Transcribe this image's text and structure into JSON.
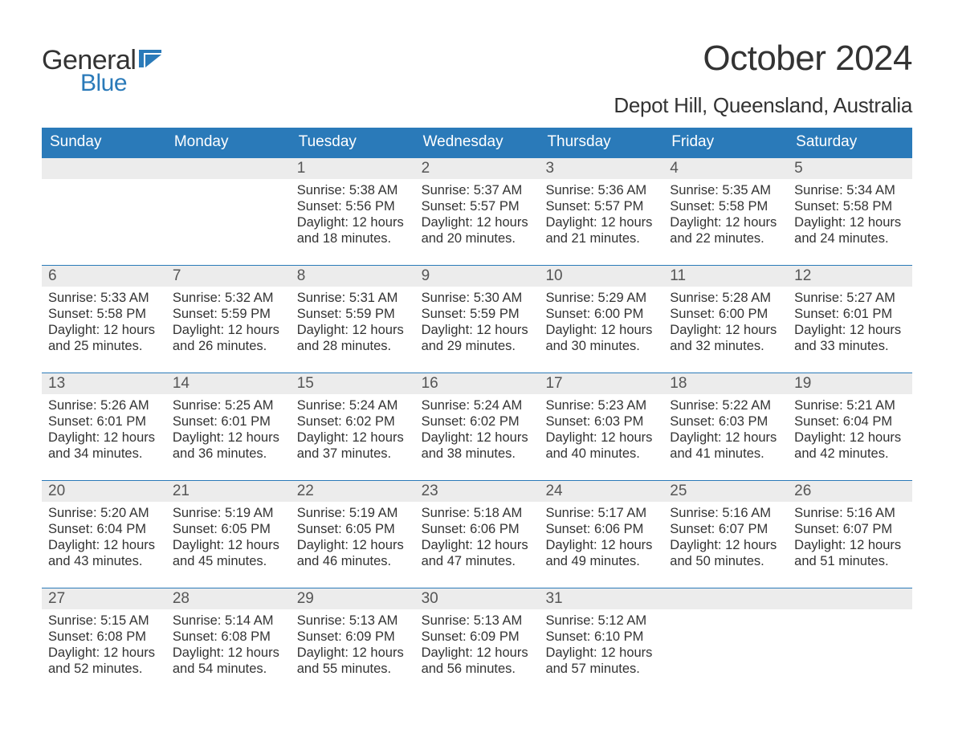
{
  "logo": {
    "word1": "General",
    "word2": "Blue"
  },
  "title": "October 2024",
  "location": "Depot Hill, Queensland, Australia",
  "colors": {
    "header_blue": "#2a7ab9",
    "row_gray": "#ececec",
    "text": "#333333",
    "logo_blue": "#2a7ab9",
    "white": "#ffffff"
  },
  "weekdays": [
    "Sunday",
    "Monday",
    "Tuesday",
    "Wednesday",
    "Thursday",
    "Friday",
    "Saturday"
  ],
  "weeks": [
    [
      {
        "blank": true
      },
      {
        "blank": true
      },
      {
        "day": "1",
        "sunrise": "Sunrise: 5:38 AM",
        "sunset": "Sunset: 5:56 PM",
        "daylight1": "Daylight: 12 hours",
        "daylight2": "and 18 minutes."
      },
      {
        "day": "2",
        "sunrise": "Sunrise: 5:37 AM",
        "sunset": "Sunset: 5:57 PM",
        "daylight1": "Daylight: 12 hours",
        "daylight2": "and 20 minutes."
      },
      {
        "day": "3",
        "sunrise": "Sunrise: 5:36 AM",
        "sunset": "Sunset: 5:57 PM",
        "daylight1": "Daylight: 12 hours",
        "daylight2": "and 21 minutes."
      },
      {
        "day": "4",
        "sunrise": "Sunrise: 5:35 AM",
        "sunset": "Sunset: 5:58 PM",
        "daylight1": "Daylight: 12 hours",
        "daylight2": "and 22 minutes."
      },
      {
        "day": "5",
        "sunrise": "Sunrise: 5:34 AM",
        "sunset": "Sunset: 5:58 PM",
        "daylight1": "Daylight: 12 hours",
        "daylight2": "and 24 minutes."
      }
    ],
    [
      {
        "day": "6",
        "sunrise": "Sunrise: 5:33 AM",
        "sunset": "Sunset: 5:58 PM",
        "daylight1": "Daylight: 12 hours",
        "daylight2": "and 25 minutes."
      },
      {
        "day": "7",
        "sunrise": "Sunrise: 5:32 AM",
        "sunset": "Sunset: 5:59 PM",
        "daylight1": "Daylight: 12 hours",
        "daylight2": "and 26 minutes."
      },
      {
        "day": "8",
        "sunrise": "Sunrise: 5:31 AM",
        "sunset": "Sunset: 5:59 PM",
        "daylight1": "Daylight: 12 hours",
        "daylight2": "and 28 minutes."
      },
      {
        "day": "9",
        "sunrise": "Sunrise: 5:30 AM",
        "sunset": "Sunset: 5:59 PM",
        "daylight1": "Daylight: 12 hours",
        "daylight2": "and 29 minutes."
      },
      {
        "day": "10",
        "sunrise": "Sunrise: 5:29 AM",
        "sunset": "Sunset: 6:00 PM",
        "daylight1": "Daylight: 12 hours",
        "daylight2": "and 30 minutes."
      },
      {
        "day": "11",
        "sunrise": "Sunrise: 5:28 AM",
        "sunset": "Sunset: 6:00 PM",
        "daylight1": "Daylight: 12 hours",
        "daylight2": "and 32 minutes."
      },
      {
        "day": "12",
        "sunrise": "Sunrise: 5:27 AM",
        "sunset": "Sunset: 6:01 PM",
        "daylight1": "Daylight: 12 hours",
        "daylight2": "and 33 minutes."
      }
    ],
    [
      {
        "day": "13",
        "sunrise": "Sunrise: 5:26 AM",
        "sunset": "Sunset: 6:01 PM",
        "daylight1": "Daylight: 12 hours",
        "daylight2": "and 34 minutes."
      },
      {
        "day": "14",
        "sunrise": "Sunrise: 5:25 AM",
        "sunset": "Sunset: 6:01 PM",
        "daylight1": "Daylight: 12 hours",
        "daylight2": "and 36 minutes."
      },
      {
        "day": "15",
        "sunrise": "Sunrise: 5:24 AM",
        "sunset": "Sunset: 6:02 PM",
        "daylight1": "Daylight: 12 hours",
        "daylight2": "and 37 minutes."
      },
      {
        "day": "16",
        "sunrise": "Sunrise: 5:24 AM",
        "sunset": "Sunset: 6:02 PM",
        "daylight1": "Daylight: 12 hours",
        "daylight2": "and 38 minutes."
      },
      {
        "day": "17",
        "sunrise": "Sunrise: 5:23 AM",
        "sunset": "Sunset: 6:03 PM",
        "daylight1": "Daylight: 12 hours",
        "daylight2": "and 40 minutes."
      },
      {
        "day": "18",
        "sunrise": "Sunrise: 5:22 AM",
        "sunset": "Sunset: 6:03 PM",
        "daylight1": "Daylight: 12 hours",
        "daylight2": "and 41 minutes."
      },
      {
        "day": "19",
        "sunrise": "Sunrise: 5:21 AM",
        "sunset": "Sunset: 6:04 PM",
        "daylight1": "Daylight: 12 hours",
        "daylight2": "and 42 minutes."
      }
    ],
    [
      {
        "day": "20",
        "sunrise": "Sunrise: 5:20 AM",
        "sunset": "Sunset: 6:04 PM",
        "daylight1": "Daylight: 12 hours",
        "daylight2": "and 43 minutes."
      },
      {
        "day": "21",
        "sunrise": "Sunrise: 5:19 AM",
        "sunset": "Sunset: 6:05 PM",
        "daylight1": "Daylight: 12 hours",
        "daylight2": "and 45 minutes."
      },
      {
        "day": "22",
        "sunrise": "Sunrise: 5:19 AM",
        "sunset": "Sunset: 6:05 PM",
        "daylight1": "Daylight: 12 hours",
        "daylight2": "and 46 minutes."
      },
      {
        "day": "23",
        "sunrise": "Sunrise: 5:18 AM",
        "sunset": "Sunset: 6:06 PM",
        "daylight1": "Daylight: 12 hours",
        "daylight2": "and 47 minutes."
      },
      {
        "day": "24",
        "sunrise": "Sunrise: 5:17 AM",
        "sunset": "Sunset: 6:06 PM",
        "daylight1": "Daylight: 12 hours",
        "daylight2": "and 49 minutes."
      },
      {
        "day": "25",
        "sunrise": "Sunrise: 5:16 AM",
        "sunset": "Sunset: 6:07 PM",
        "daylight1": "Daylight: 12 hours",
        "daylight2": "and 50 minutes."
      },
      {
        "day": "26",
        "sunrise": "Sunrise: 5:16 AM",
        "sunset": "Sunset: 6:07 PM",
        "daylight1": "Daylight: 12 hours",
        "daylight2": "and 51 minutes."
      }
    ],
    [
      {
        "day": "27",
        "sunrise": "Sunrise: 5:15 AM",
        "sunset": "Sunset: 6:08 PM",
        "daylight1": "Daylight: 12 hours",
        "daylight2": "and 52 minutes."
      },
      {
        "day": "28",
        "sunrise": "Sunrise: 5:14 AM",
        "sunset": "Sunset: 6:08 PM",
        "daylight1": "Daylight: 12 hours",
        "daylight2": "and 54 minutes."
      },
      {
        "day": "29",
        "sunrise": "Sunrise: 5:13 AM",
        "sunset": "Sunset: 6:09 PM",
        "daylight1": "Daylight: 12 hours",
        "daylight2": "and 55 minutes."
      },
      {
        "day": "30",
        "sunrise": "Sunrise: 5:13 AM",
        "sunset": "Sunset: 6:09 PM",
        "daylight1": "Daylight: 12 hours",
        "daylight2": "and 56 minutes."
      },
      {
        "day": "31",
        "sunrise": "Sunrise: 5:12 AM",
        "sunset": "Sunset: 6:10 PM",
        "daylight1": "Daylight: 12 hours",
        "daylight2": "and 57 minutes."
      },
      {
        "blank": true
      },
      {
        "blank": true
      }
    ]
  ]
}
